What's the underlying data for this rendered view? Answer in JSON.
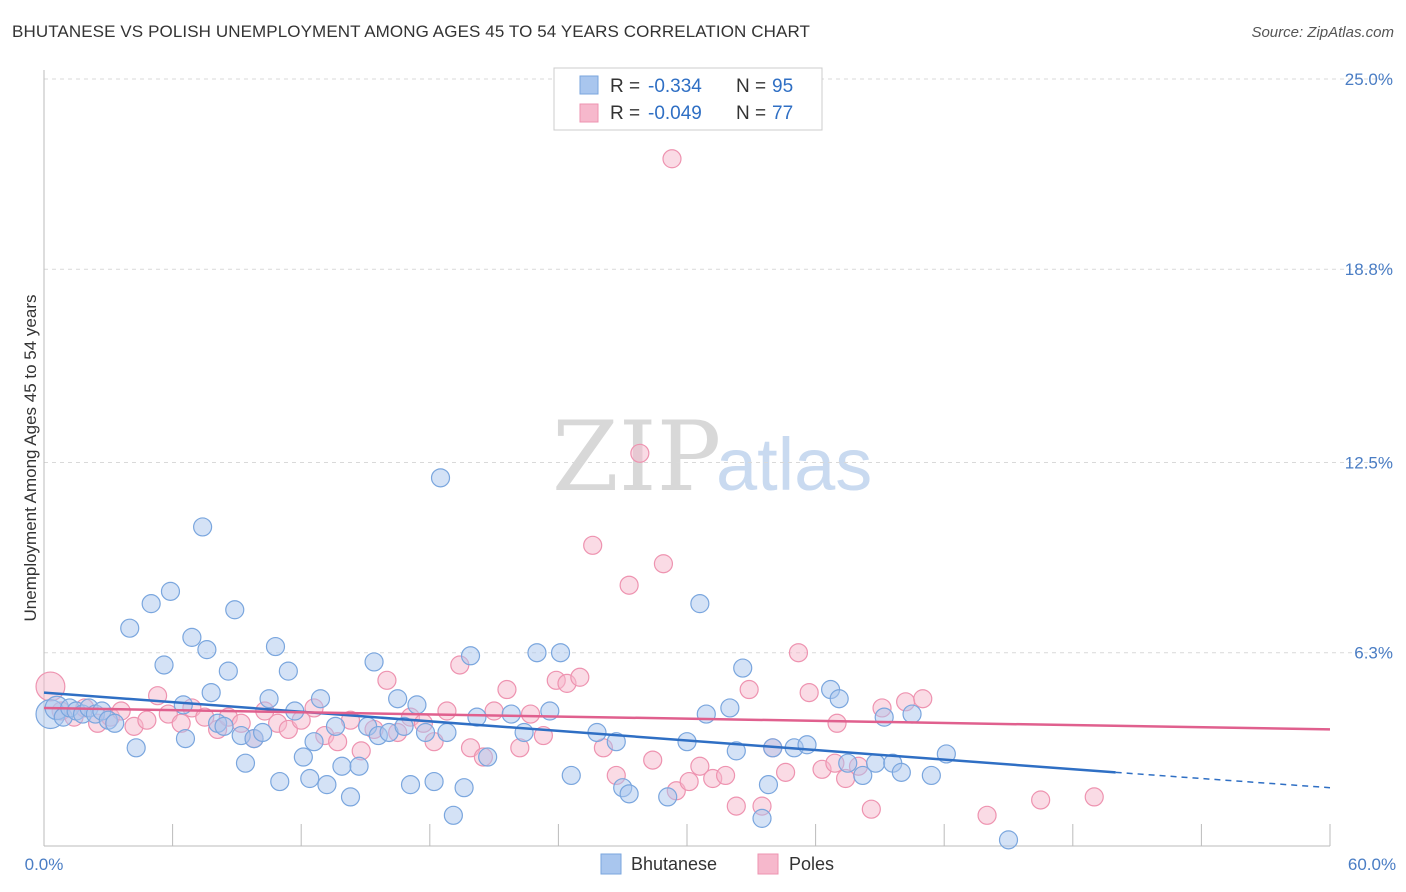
{
  "title": "BHUTANESE VS POLISH UNEMPLOYMENT AMONG AGES 45 TO 54 YEARS CORRELATION CHART",
  "source": "Source: ZipAtlas.com",
  "watermark": {
    "zip": "ZIP",
    "atlas": "atlas"
  },
  "legend": {
    "rows": [
      {
        "r_label": "R =",
        "r_value": "-0.334",
        "n_label": "N =",
        "n_value": "95"
      },
      {
        "r_label": "R =",
        "r_value": "-0.049",
        "n_label": "N =",
        "n_value": "77"
      }
    ]
  },
  "bottom_legend": [
    "Bhutanese",
    "Poles"
  ],
  "colors": {
    "bhutanese_fill": "#a9c6ee",
    "bhutanese_stroke": "#7aa6de",
    "bhutanese_line": "#2f6fc4",
    "poles_fill": "#f6b8cc",
    "poles_stroke": "#ee93b0",
    "poles_line": "#e0608e",
    "tick_label": "#4a7dc4",
    "grid": "#d9d9d9"
  },
  "chart_data": {
    "type": "scatter",
    "title": "BHUTANESE VS POLISH UNEMPLOYMENT AMONG AGES 45 TO 54 YEARS CORRELATION CHART",
    "xlabel": "",
    "ylabel": "Unemployment Among Ages 45 to 54 years",
    "xlim": [
      0,
      60
    ],
    "ylim": [
      0,
      25
    ],
    "x_tick_labels": [
      "0.0%",
      "60.0%"
    ],
    "y_ticks": [
      6.3,
      12.5,
      18.8,
      25.0
    ],
    "y_tick_labels": [
      "6.3%",
      "12.5%",
      "18.8%",
      "25.0%"
    ],
    "grid": true,
    "legend_position": "top-center",
    "series": [
      {
        "name": "Bhutanese",
        "r": -0.334,
        "n": 95,
        "trend": {
          "x0": 0,
          "y0": 5.0,
          "x1": 50,
          "y1": 2.4,
          "dashed_to_x": 60,
          "dashed_to_y": 1.9
        },
        "points": [
          [
            0.3,
            4.3,
            1.6
          ],
          [
            0.6,
            4.5,
            1.3
          ],
          [
            0.9,
            4.2,
            1
          ],
          [
            1.2,
            4.5,
            1
          ],
          [
            1.5,
            4.4,
            1
          ],
          [
            1.8,
            4.3,
            1
          ],
          [
            2.1,
            4.5,
            1
          ],
          [
            2.4,
            4.3,
            1
          ],
          [
            2.7,
            4.4,
            1
          ],
          [
            3.0,
            4.1,
            1
          ],
          [
            3.3,
            4.0,
            1
          ],
          [
            4.3,
            3.2,
            1
          ],
          [
            4.0,
            7.1,
            1
          ],
          [
            5.0,
            7.9,
            1
          ],
          [
            5.6,
            5.9,
            1
          ],
          [
            5.9,
            8.3,
            1
          ],
          [
            6.5,
            4.6,
            1
          ],
          [
            6.6,
            3.5,
            1
          ],
          [
            6.9,
            6.8,
            1
          ],
          [
            7.4,
            10.4,
            1
          ],
          [
            7.6,
            6.4,
            1
          ],
          [
            7.8,
            5.0,
            1
          ],
          [
            8.1,
            4.0,
            1
          ],
          [
            8.4,
            3.9,
            1
          ],
          [
            8.6,
            5.7,
            1
          ],
          [
            8.9,
            7.7,
            1
          ],
          [
            9.2,
            3.6,
            1
          ],
          [
            9.4,
            2.7,
            1
          ],
          [
            9.8,
            3.5,
            1
          ],
          [
            10.2,
            3.7,
            1
          ],
          [
            10.5,
            4.8,
            1
          ],
          [
            10.8,
            6.5,
            1
          ],
          [
            11.0,
            2.1,
            1
          ],
          [
            11.4,
            5.7,
            1
          ],
          [
            11.7,
            4.4,
            1
          ],
          [
            12.1,
            2.9,
            1
          ],
          [
            12.4,
            2.2,
            1
          ],
          [
            12.6,
            3.4,
            1
          ],
          [
            12.9,
            4.8,
            1
          ],
          [
            13.2,
            2.0,
            1
          ],
          [
            13.6,
            3.9,
            1
          ],
          [
            13.9,
            2.6,
            1
          ],
          [
            14.3,
            1.6,
            1
          ],
          [
            14.7,
            2.6,
            1
          ],
          [
            15.1,
            3.9,
            1
          ],
          [
            15.4,
            6.0,
            1
          ],
          [
            15.6,
            3.6,
            1
          ],
          [
            16.1,
            3.7,
            1
          ],
          [
            16.5,
            4.8,
            1
          ],
          [
            16.8,
            3.9,
            1
          ],
          [
            17.1,
            2.0,
            1
          ],
          [
            17.4,
            4.6,
            1
          ],
          [
            17.8,
            3.7,
            1
          ],
          [
            18.2,
            2.1,
            1
          ],
          [
            18.5,
            12.0,
            1
          ],
          [
            18.8,
            3.7,
            1
          ],
          [
            19.1,
            1.0,
            1
          ],
          [
            19.6,
            1.9,
            1
          ],
          [
            19.9,
            6.2,
            1
          ],
          [
            20.2,
            4.2,
            1
          ],
          [
            20.7,
            2.9,
            1
          ],
          [
            21.8,
            4.3,
            1
          ],
          [
            22.4,
            3.7,
            1
          ],
          [
            23.0,
            6.3,
            1
          ],
          [
            23.6,
            4.4,
            1
          ],
          [
            24.1,
            6.3,
            1
          ],
          [
            24.6,
            2.3,
            1
          ],
          [
            25.8,
            3.7,
            1
          ],
          [
            26.7,
            3.4,
            1
          ],
          [
            27.0,
            1.9,
            1
          ],
          [
            27.3,
            1.7,
            1
          ],
          [
            29.1,
            1.6,
            1
          ],
          [
            30.6,
            7.9,
            1
          ],
          [
            30.9,
            4.3,
            1
          ],
          [
            32.0,
            4.5,
            1
          ],
          [
            32.3,
            3.1,
            1
          ],
          [
            32.6,
            5.8,
            1
          ],
          [
            33.8,
            2.0,
            1
          ],
          [
            34.0,
            3.2,
            1
          ],
          [
            35.0,
            3.2,
            1
          ],
          [
            35.6,
            3.3,
            1
          ],
          [
            36.7,
            5.1,
            1
          ],
          [
            37.1,
            4.8,
            1
          ],
          [
            37.5,
            2.7,
            1
          ],
          [
            38.2,
            2.3,
            1
          ],
          [
            38.8,
            2.7,
            1
          ],
          [
            39.2,
            4.2,
            1
          ],
          [
            39.6,
            2.7,
            1
          ],
          [
            40.0,
            2.4,
            1
          ],
          [
            40.5,
            4.3,
            1
          ],
          [
            41.4,
            2.3,
            1
          ],
          [
            42.1,
            3.0,
            1
          ],
          [
            45.0,
            0.2,
            1
          ],
          [
            33.5,
            0.9,
            1
          ],
          [
            30.0,
            3.4,
            1
          ]
        ]
      },
      {
        "name": "Poles",
        "r": -0.049,
        "n": 77,
        "trend": {
          "x0": 0,
          "y0": 4.5,
          "x1": 60,
          "y1": 3.8
        },
        "points": [
          [
            0.3,
            5.2,
            1.6
          ],
          [
            0.8,
            4.4,
            1
          ],
          [
            1.4,
            4.2,
            1
          ],
          [
            1.9,
            4.5,
            1
          ],
          [
            2.5,
            4.0,
            1
          ],
          [
            3.1,
            4.2,
            1
          ],
          [
            3.6,
            4.4,
            1
          ],
          [
            4.2,
            3.9,
            1
          ],
          [
            4.8,
            4.1,
            1
          ],
          [
            5.3,
            4.9,
            1
          ],
          [
            5.8,
            4.3,
            1
          ],
          [
            6.4,
            4.0,
            1
          ],
          [
            6.9,
            4.5,
            1
          ],
          [
            7.5,
            4.2,
            1
          ],
          [
            8.1,
            3.8,
            1
          ],
          [
            8.6,
            4.2,
            1
          ],
          [
            9.2,
            4.0,
            1
          ],
          [
            9.8,
            3.5,
            1
          ],
          [
            10.3,
            4.4,
            1
          ],
          [
            10.9,
            4.0,
            1
          ],
          [
            11.4,
            3.8,
            1
          ],
          [
            12.0,
            4.1,
            1
          ],
          [
            12.6,
            4.5,
            1
          ],
          [
            13.1,
            3.6,
            1
          ],
          [
            13.7,
            3.4,
            1
          ],
          [
            14.3,
            4.1,
            1
          ],
          [
            14.8,
            3.1,
            1
          ],
          [
            15.4,
            3.8,
            1
          ],
          [
            16.0,
            5.4,
            1
          ],
          [
            16.5,
            3.7,
            1
          ],
          [
            17.1,
            4.2,
            1
          ],
          [
            17.7,
            4.0,
            1
          ],
          [
            18.2,
            3.4,
            1
          ],
          [
            18.8,
            4.4,
            1
          ],
          [
            19.4,
            5.9,
            1
          ],
          [
            19.9,
            3.2,
            1
          ],
          [
            20.5,
            2.9,
            1
          ],
          [
            21.0,
            4.4,
            1
          ],
          [
            21.6,
            5.1,
            1
          ],
          [
            22.2,
            3.2,
            1
          ],
          [
            22.7,
            4.3,
            1
          ],
          [
            23.3,
            3.6,
            1
          ],
          [
            23.9,
            5.4,
            1
          ],
          [
            24.4,
            5.3,
            1
          ],
          [
            25.0,
            5.5,
            1
          ],
          [
            25.6,
            9.8,
            1
          ],
          [
            26.1,
            3.2,
            1
          ],
          [
            26.7,
            2.3,
            1
          ],
          [
            27.3,
            8.5,
            1
          ],
          [
            27.8,
            12.8,
            1
          ],
          [
            28.4,
            2.8,
            1
          ],
          [
            28.9,
            9.2,
            1
          ],
          [
            29.5,
            1.8,
            1
          ],
          [
            30.1,
            2.1,
            1
          ],
          [
            30.6,
            2.6,
            1
          ],
          [
            31.2,
            2.2,
            1
          ],
          [
            31.8,
            2.3,
            1
          ],
          [
            32.3,
            1.3,
            1
          ],
          [
            32.9,
            5.1,
            1
          ],
          [
            33.5,
            1.3,
            1
          ],
          [
            34.0,
            3.2,
            1
          ],
          [
            34.6,
            2.4,
            1
          ],
          [
            35.2,
            6.3,
            1
          ],
          [
            35.7,
            5.0,
            1
          ],
          [
            36.3,
            2.5,
            1
          ],
          [
            36.9,
            2.7,
            1
          ],
          [
            37.4,
            2.2,
            1
          ],
          [
            38.0,
            2.6,
            1
          ],
          [
            38.6,
            1.2,
            1
          ],
          [
            39.1,
            4.5,
            1
          ],
          [
            40.2,
            4.7,
            1
          ],
          [
            41.0,
            4.8,
            1
          ],
          [
            44.0,
            1.0,
            1
          ],
          [
            46.5,
            1.5,
            1
          ],
          [
            49.0,
            1.6,
            1
          ],
          [
            29.3,
            22.4,
            1
          ],
          [
            37.0,
            4.0,
            1
          ]
        ]
      }
    ]
  }
}
